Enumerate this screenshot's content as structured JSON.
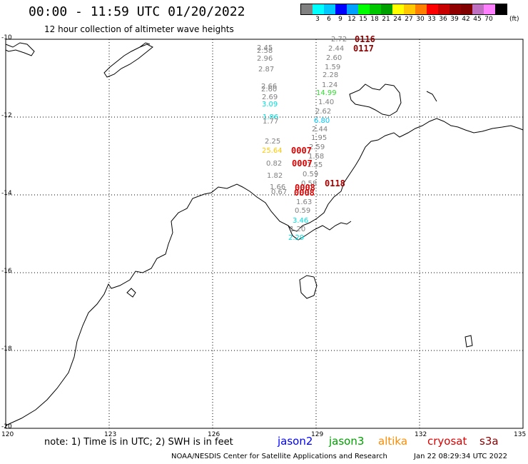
{
  "header": {
    "title": "00:00 - 11:59 UTC 01/20/2022",
    "subtitle": "12 hour collection of altimeter wave heights"
  },
  "legend": {
    "colors": [
      "#808080",
      "#00ffff",
      "#00c8ff",
      "#0000ff",
      "#00a0ff",
      "#00ff00",
      "#00c800",
      "#00a000",
      "#ffff00",
      "#ffc800",
      "#ff8000",
      "#ff0000",
      "#c80000",
      "#900000",
      "#800000",
      "#c070c0",
      "#ff80ff",
      "#000000"
    ],
    "labels": [
      "3",
      "6",
      "9",
      "12",
      "15",
      "18",
      "21",
      "24",
      "27",
      "30",
      "33",
      "36",
      "39",
      "42",
      "45",
      "70"
    ],
    "unit": "(ft)"
  },
  "axes": {
    "lat_labels": [
      "-10",
      "-12",
      "-14",
      "-16",
      "-18",
      "-20"
    ],
    "lon_labels": [
      "120",
      "123",
      "126",
      "129",
      "132",
      "135"
    ]
  },
  "measurements": [
    {
      "text": "2.72",
      "color": "#808080"
    },
    {
      "text": "2.44",
      "color": "#808080"
    },
    {
      "text": "2.60",
      "color": "#808080"
    },
    {
      "text": "1.59",
      "color": "#808080"
    },
    {
      "text": "2.28",
      "color": "#808080"
    },
    {
      "text": "1.24",
      "color": "#808080"
    },
    {
      "text": "14.99",
      "color": "#33dd33"
    },
    {
      "text": "1.40",
      "color": "#808080"
    },
    {
      "text": "2.62",
      "color": "#808080"
    },
    {
      "text": "6.80",
      "color": "#00c8ff"
    },
    {
      "text": "2.44",
      "color": "#808080"
    },
    {
      "text": "1.95",
      "color": "#808080"
    },
    {
      "text": "2.59",
      "color": "#808080"
    },
    {
      "text": "1.68",
      "color": "#808080"
    },
    {
      "text": "1.55",
      "color": "#808080"
    },
    {
      "text": "0.59",
      "color": "#808080"
    },
    {
      "text": "0.58",
      "color": "#808080"
    },
    {
      "text": "1.63",
      "color": "#808080"
    },
    {
      "text": "0.59",
      "color": "#808080"
    },
    {
      "text": "3.46",
      "color": "#00dddd"
    },
    {
      "text": "1.20",
      "color": "#808080"
    },
    {
      "text": "2.29",
      "color": "#00dddd"
    },
    {
      "text": "2.45",
      "color": "#808080"
    },
    {
      "text": "2.58",
      "color": "#808080"
    },
    {
      "text": "2.96",
      "color": "#808080"
    },
    {
      "text": "2.87",
      "color": "#808080"
    },
    {
      "text": "2.66",
      "color": "#808080"
    },
    {
      "text": "2.60",
      "color": "#808080"
    },
    {
      "text": "2.69",
      "color": "#808080"
    },
    {
      "text": "3.09",
      "color": "#00dddd"
    },
    {
      "text": "1.86",
      "color": "#00dddd"
    },
    {
      "text": "1.77",
      "color": "#808080"
    },
    {
      "text": "2.25",
      "color": "#808080"
    },
    {
      "text": "25.64",
      "color": "#ffc800"
    },
    {
      "text": "0.82",
      "color": "#808080"
    },
    {
      "text": "1.82",
      "color": "#808080"
    },
    {
      "text": "1.66",
      "color": "#808080"
    },
    {
      "text": "0.67",
      "color": "#808080"
    }
  ],
  "pass_codes": [
    {
      "text": "0116",
      "color": "#8b0000"
    },
    {
      "text": "0117",
      "color": "#8b0000"
    },
    {
      "text": "0007",
      "color": "#dd0000"
    },
    {
      "text": "0007",
      "color": "#dd0000"
    },
    {
      "text": "0008",
      "color": "#dd0000"
    },
    {
      "text": "0008",
      "color": "#dd0000"
    },
    {
      "text": "0118",
      "color": "#aa0000"
    }
  ],
  "footer": {
    "note": "note: 1) Time is in UTC; 2) SWH is in feet",
    "satellites": [
      {
        "name": "jason2",
        "color": "#0000ff"
      },
      {
        "name": "jason3",
        "color": "#00a000"
      },
      {
        "name": "altika",
        "color": "#ff8c00"
      },
      {
        "name": "cryosat",
        "color": "#dd0000"
      },
      {
        "name": "s3a",
        "color": "#8b0000"
      }
    ],
    "credit": "NOAA/NESDIS Center for Satellite Applications and Research",
    "timestamp": "Jan 22 08:29:34 UTC 2022"
  }
}
